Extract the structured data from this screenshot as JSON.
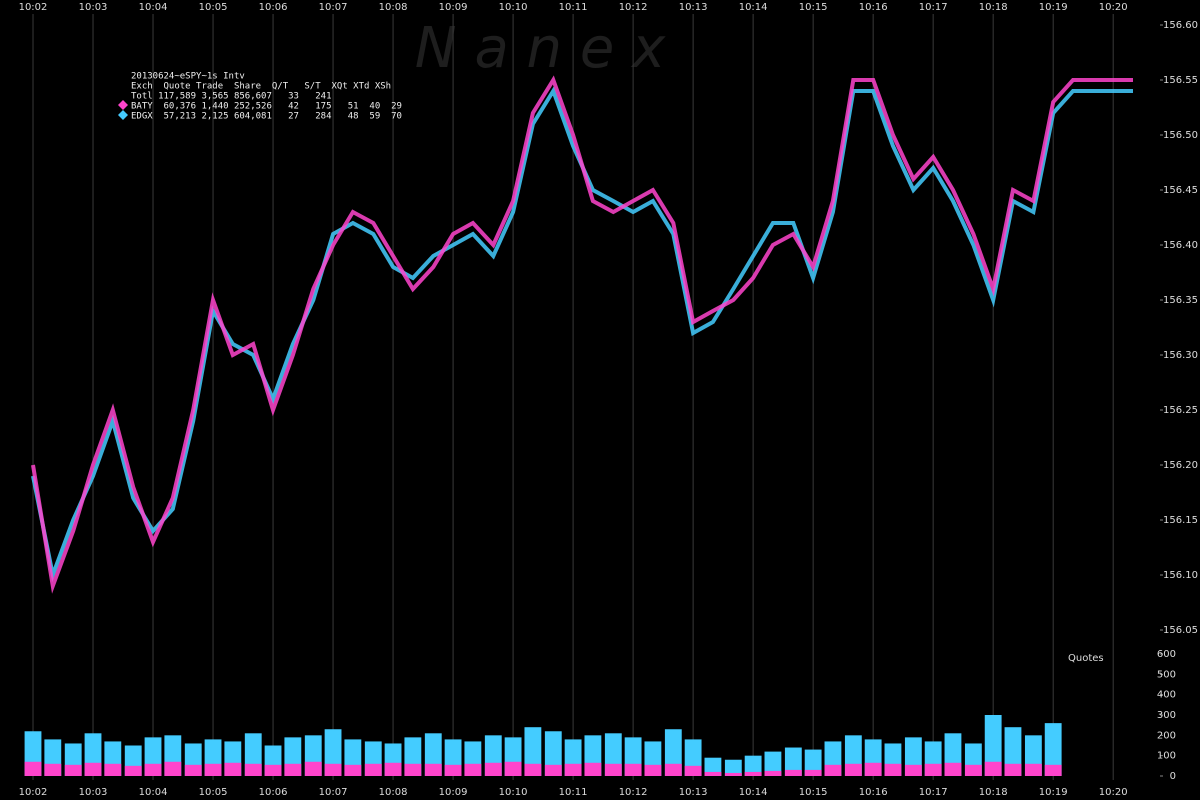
{
  "watermark": "N a n e x",
  "legend": {
    "title": "20130624~eSPY~1s Intv",
    "lines": [
      "Exch  Quote Trade  Share  Q/T   S/T  XQt XTd XSh",
      "Totl 117,589 3,565 856,607   33   241",
      "BATY  60,376 1,440 252,526   42   175   51  40  29",
      "EDGX  57,213 2,125 604,081   27   284   48  59  70"
    ]
  },
  "chart_data": [
    {
      "type": "line",
      "x": [
        2.0,
        2.33,
        2.67,
        3.0,
        3.33,
        3.67,
        4.0,
        4.33,
        4.67,
        5.0,
        5.33,
        5.67,
        6.0,
        6.33,
        6.67,
        7.0,
        7.33,
        7.67,
        8.0,
        8.33,
        8.67,
        9.0,
        9.33,
        9.67,
        10.0,
        10.33,
        10.67,
        11.0,
        11.33,
        11.67,
        12.0,
        12.33,
        12.67,
        13.0,
        13.33,
        13.67,
        14.0,
        14.33,
        14.67,
        15.0,
        15.33,
        15.67,
        16.0,
        16.33,
        16.67,
        17.0,
        17.33,
        17.67,
        18.0,
        18.33,
        18.67,
        19.0,
        19.33,
        19.67,
        20.0,
        20.33
      ],
      "series": [
        {
          "name": "EDGX",
          "color": "#44ccff",
          "values": [
            156.19,
            156.1,
            156.15,
            156.19,
            156.24,
            156.17,
            156.14,
            156.16,
            156.24,
            156.34,
            156.31,
            156.3,
            156.26,
            156.31,
            156.35,
            156.41,
            156.42,
            156.41,
            156.38,
            156.37,
            156.39,
            156.4,
            156.41,
            156.39,
            156.43,
            156.51,
            156.54,
            156.49,
            156.45,
            156.44,
            156.43,
            156.44,
            156.41,
            156.32,
            156.33,
            156.36,
            156.39,
            156.42,
            156.42,
            156.37,
            156.43,
            156.54,
            156.54,
            156.49,
            156.45,
            156.47,
            156.44,
            156.4,
            156.35,
            156.44,
            156.43,
            156.52,
            156.54,
            156.54,
            156.54,
            156.54
          ]
        },
        {
          "name": "BATY",
          "color": "#ff44cc",
          "values": [
            156.2,
            156.09,
            156.14,
            156.2,
            156.25,
            156.18,
            156.13,
            156.17,
            156.25,
            156.35,
            156.3,
            156.31,
            156.25,
            156.3,
            156.36,
            156.4,
            156.43,
            156.42,
            156.39,
            156.36,
            156.38,
            156.41,
            156.42,
            156.4,
            156.44,
            156.52,
            156.55,
            156.5,
            156.44,
            156.43,
            156.44,
            156.45,
            156.42,
            156.33,
            156.34,
            156.35,
            156.37,
            156.4,
            156.41,
            156.38,
            156.44,
            156.55,
            156.55,
            156.5,
            156.46,
            156.48,
            156.45,
            156.41,
            156.36,
            156.45,
            156.44,
            156.53,
            156.55,
            156.55,
            156.55,
            156.55
          ]
        }
      ],
      "xlim": [
        1.45,
        20.78
      ],
      "xticks": [
        {
          "value": 2,
          "label": "10:02"
        },
        {
          "value": 3,
          "label": "10:03"
        },
        {
          "value": 4,
          "label": "10:04"
        },
        {
          "value": 5,
          "label": "10:05"
        },
        {
          "value": 6,
          "label": "10:06"
        },
        {
          "value": 7,
          "label": "10:07"
        },
        {
          "value": 8,
          "label": "10:08"
        },
        {
          "value": 9,
          "label": "10:09"
        },
        {
          "value": 10,
          "label": "10:10"
        },
        {
          "value": 11,
          "label": "10:11"
        },
        {
          "value": 12,
          "label": "10:12"
        },
        {
          "value": 13,
          "label": "10:13"
        },
        {
          "value": 14,
          "label": "10:14"
        },
        {
          "value": 15,
          "label": "10:15"
        },
        {
          "value": 16,
          "label": "10:16"
        },
        {
          "value": 17,
          "label": "10:17"
        },
        {
          "value": 18,
          "label": "10:18"
        },
        {
          "value": 19,
          "label": "10:19"
        },
        {
          "value": 20,
          "label": "10:20"
        }
      ],
      "ylim": [
        156.04,
        156.61
      ],
      "yticks": [
        156.05,
        {
          "value": 156.1,
          "label": "156.10"
        },
        156.15,
        {
          "value": 156.2,
          "label": "156.20"
        },
        156.25,
        {
          "value": 156.3,
          "label": "156.30"
        },
        156.35,
        {
          "value": 156.4,
          "label": "156.40"
        },
        156.45,
        {
          "value": 156.5,
          "label": "156.50"
        },
        156.55,
        {
          "value": 156.6,
          "label": "156.60"
        }
      ],
      "grid": "x"
    },
    {
      "type": "bar",
      "ylabel": "Quotes",
      "x": [
        2.0,
        2.33,
        2.67,
        3.0,
        3.33,
        3.67,
        4.0,
        4.33,
        4.67,
        5.0,
        5.33,
        5.67,
        6.0,
        6.33,
        6.67,
        7.0,
        7.33,
        7.67,
        8.0,
        8.33,
        8.67,
        9.0,
        9.33,
        9.67,
        10.0,
        10.33,
        10.67,
        11.0,
        11.33,
        11.67,
        12.0,
        12.33,
        12.67,
        13.0,
        13.33,
        13.67,
        14.0,
        14.33,
        14.67,
        15.0,
        15.33,
        15.67,
        16.0,
        16.33,
        16.67,
        17.0,
        17.33,
        17.67,
        18.0,
        18.33,
        18.67,
        19.0
      ],
      "series": [
        {
          "name": "EDGX",
          "color": "#44ccff",
          "values": [
            220,
            180,
            160,
            210,
            170,
            150,
            190,
            200,
            160,
            180,
            170,
            210,
            150,
            190,
            200,
            230,
            180,
            170,
            160,
            190,
            210,
            180,
            170,
            200,
            190,
            240,
            220,
            180,
            200,
            210,
            190,
            170,
            230,
            180,
            90,
            80,
            100,
            120,
            140,
            130,
            170,
            200,
            180,
            160,
            190,
            170,
            210,
            160,
            300,
            240,
            200,
            260
          ]
        },
        {
          "name": "BATY",
          "color": "#ff44cc",
          "values": [
            70,
            60,
            55,
            65,
            60,
            50,
            60,
            70,
            55,
            60,
            65,
            60,
            55,
            60,
            70,
            60,
            55,
            60,
            65,
            60,
            60,
            55,
            60,
            65,
            70,
            60,
            55,
            60,
            65,
            60,
            60,
            55,
            60,
            50,
            20,
            15,
            20,
            25,
            30,
            30,
            55,
            60,
            65,
            60,
            55,
            60,
            65,
            55,
            70,
            60,
            60,
            55
          ]
        }
      ],
      "ylim": [
        0,
        600
      ],
      "yticks": [
        0,
        100,
        200,
        300,
        400,
        500,
        600
      ]
    }
  ]
}
